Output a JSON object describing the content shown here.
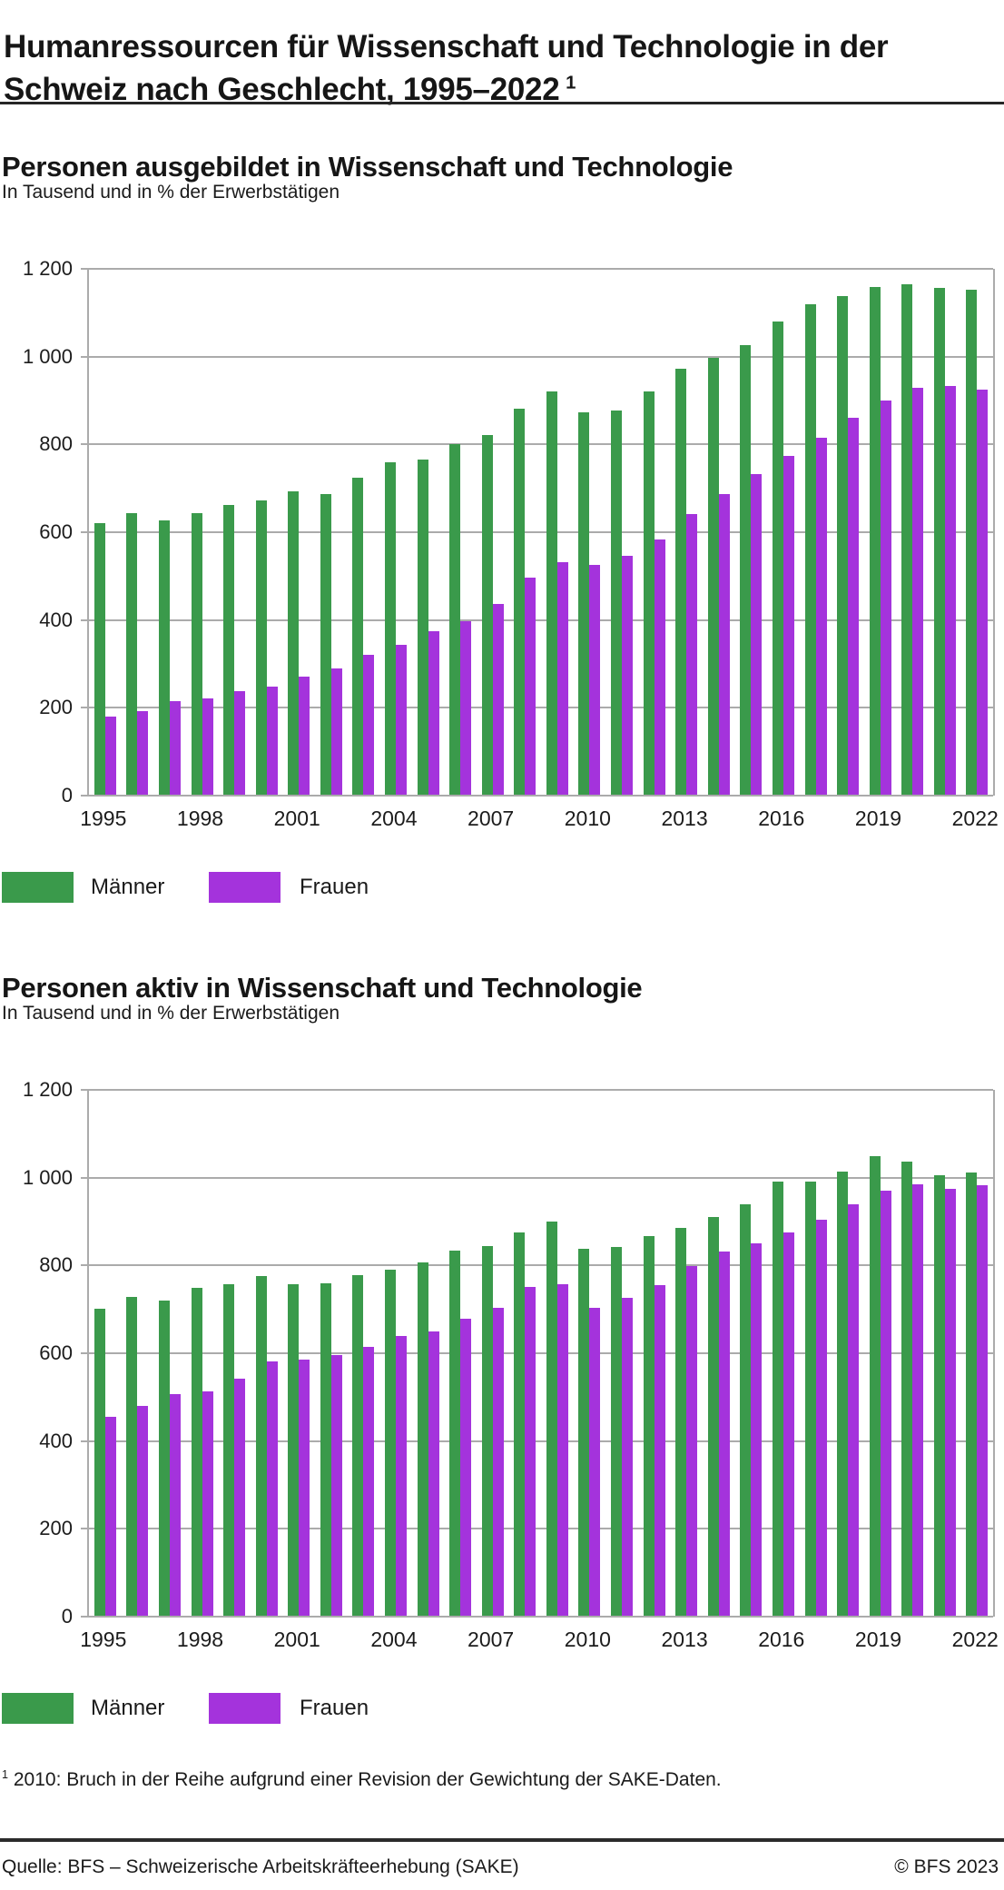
{
  "title": "Humanressourcen für Wissenschaft und Technologie in der Schweiz nach Geschlecht, 1995–2022",
  "title_sup": "1",
  "colors": {
    "maenner": "#3a9a4b",
    "frauen": "#a433dc",
    "grid": "#ababab",
    "text": "#1a1a1a"
  },
  "legend": {
    "maenner": "Männer",
    "frauen": "Frauen"
  },
  "footnote": {
    "marker": "1",
    "text": "2010: Bruch in der Reihe  aufgrund einer Revision der Gewichtung der SAKE-Daten."
  },
  "source": {
    "left": "Quelle: BFS – Schweizerische Arbeitskräfteerhebung (SAKE)",
    "right": "© BFS 2023"
  },
  "chart_data": [
    {
      "id": "ausgebildet",
      "type": "bar",
      "title": "Personen ausgebildet in Wissenschaft und Technologie",
      "subtitle": "In Tausend und in % der Erwerbstätigen",
      "ylim": [
        0,
        1200
      ],
      "grid": true,
      "legend_position": "bottom",
      "y_tick_labels": [
        "1 200",
        "1 000",
        "800",
        "600",
        "400",
        "200",
        "0"
      ],
      "x_tick_labels": [
        "1995",
        "1998",
        "2001",
        "2004",
        "2007",
        "2010",
        "2013",
        "2016",
        "2019",
        "2022"
      ],
      "categories": [
        1995,
        1996,
        1997,
        1998,
        1999,
        2000,
        2001,
        2002,
        2003,
        2004,
        2005,
        2006,
        2007,
        2008,
        2009,
        2010,
        2011,
        2012,
        2013,
        2014,
        2015,
        2016,
        2017,
        2018,
        2019,
        2020,
        2021,
        2022
      ],
      "series": [
        {
          "name": "Männer",
          "color": "#3a9a4b",
          "values": [
            620,
            644,
            626,
            644,
            662,
            672,
            693,
            687,
            724,
            760,
            766,
            800,
            822,
            882,
            920,
            874,
            878,
            920,
            972,
            998,
            1026,
            1080,
            1119,
            1138,
            1159,
            1165,
            1156,
            1153
          ]
        },
        {
          "name": "Frauen",
          "color": "#a433dc",
          "values": [
            180,
            193,
            216,
            222,
            237,
            248,
            271,
            289,
            320,
            344,
            374,
            397,
            437,
            497,
            531,
            526,
            547,
            584,
            641,
            686,
            733,
            773,
            816,
            861,
            899,
            928,
            933,
            925
          ]
        }
      ]
    },
    {
      "id": "aktiv",
      "type": "bar",
      "title": "Personen aktiv in Wissenschaft und Technologie",
      "subtitle": "In Tausend und in % der Erwerbstätigen",
      "ylim": [
        0,
        1200
      ],
      "grid": true,
      "legend_position": "bottom",
      "y_tick_labels": [
        "1 200",
        "1 000",
        "800",
        "600",
        "400",
        "200",
        "0"
      ],
      "x_tick_labels": [
        "1995",
        "1998",
        "2001",
        "2004",
        "2007",
        "2010",
        "2013",
        "2016",
        "2019",
        "2022"
      ],
      "categories": [
        1995,
        1996,
        1997,
        1998,
        1999,
        2000,
        2001,
        2002,
        2003,
        2004,
        2005,
        2006,
        2007,
        2008,
        2009,
        2010,
        2011,
        2012,
        2013,
        2014,
        2015,
        2016,
        2017,
        2018,
        2019,
        2020,
        2021,
        2022
      ],
      "series": [
        {
          "name": "Männer",
          "color": "#3a9a4b",
          "values": [
            702,
            728,
            719,
            749,
            757,
            775,
            758,
            760,
            777,
            790,
            807,
            833,
            845,
            875,
            901,
            838,
            843,
            866,
            886,
            910,
            940,
            992,
            991,
            1014,
            1050,
            1037,
            1006,
            1011
          ]
        },
        {
          "name": "Frauen",
          "color": "#a433dc",
          "values": [
            455,
            480,
            507,
            514,
            543,
            582,
            586,
            595,
            614,
            639,
            650,
            678,
            703,
            752,
            758,
            703,
            727,
            756,
            798,
            831,
            851,
            876,
            904,
            940,
            970,
            984,
            975,
            982
          ]
        }
      ]
    }
  ]
}
